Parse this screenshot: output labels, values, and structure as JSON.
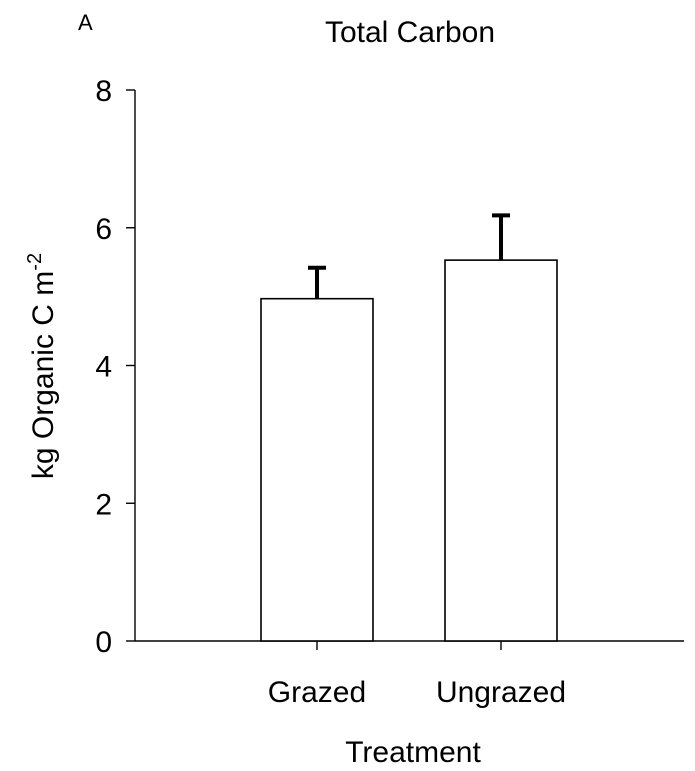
{
  "chart_data": {
    "type": "bar",
    "panel_label": "A",
    "title": "Total Carbon",
    "xlabel": "Treatment",
    "ylabel": "kg Organic C m",
    "ylabel_superscript": "-2",
    "ylim": [
      0,
      8
    ],
    "yticks": [
      "0",
      "2",
      "4",
      "6",
      "8"
    ],
    "categories": [
      "Grazed",
      "Ungrazed"
    ],
    "values": [
      4.97,
      5.53
    ],
    "error_upper": [
      0.45,
      0.65
    ],
    "bar_color": "#ffffff",
    "edge_color": "#000000",
    "grid": false,
    "legend": "none"
  }
}
